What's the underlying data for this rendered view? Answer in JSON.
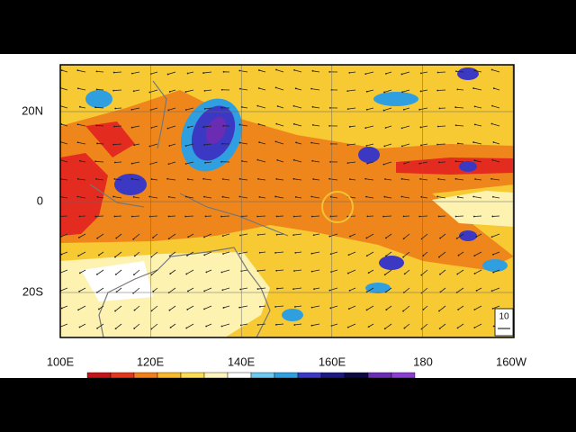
{
  "map": {
    "lat_labels": [
      "20N",
      "0",
      "20S"
    ],
    "lon_labels": [
      "100E",
      "120E",
      "140E",
      "160E",
      "180",
      "160W"
    ],
    "ref_vector": "10"
  }
}
